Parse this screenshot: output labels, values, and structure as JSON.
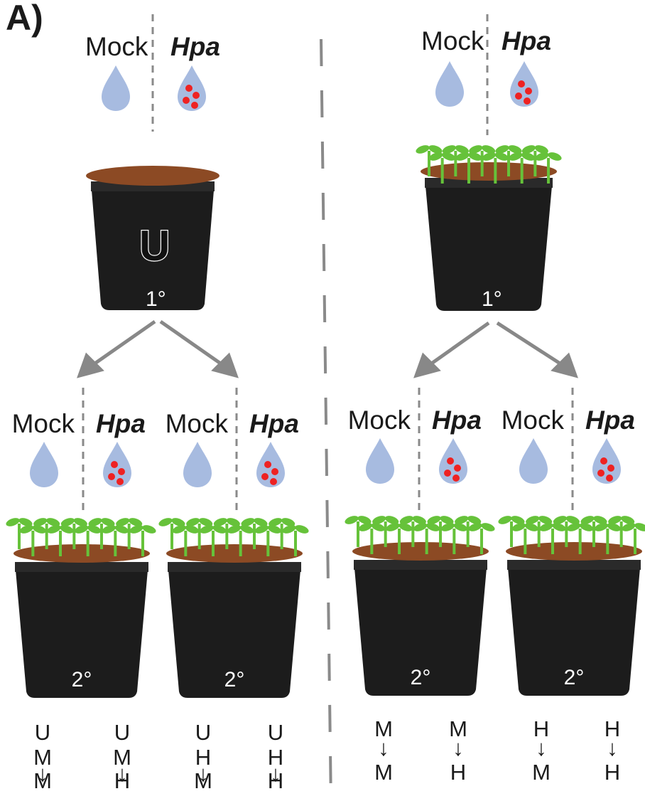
{
  "panel_label": "A)",
  "treatments": {
    "mock": "Mock",
    "hpa": "Hpa"
  },
  "pot_labels": {
    "unplanted": "U",
    "primary": "1°",
    "secondary": "2°"
  },
  "colors": {
    "droplet": "#a7bbe0",
    "spore": "#ee2222",
    "soil": "#8c4a24",
    "pot": "#1c1c1c",
    "seedling": "#66c23a",
    "dashed_line": "#8a8a8a",
    "arrow": "#888888"
  },
  "icons": [
    "water-droplet-icon",
    "spore-droplet-icon",
    "plant-pot-icon",
    "seedling-icon",
    "arrow-icon"
  ],
  "left_sequences": [
    [
      "U",
      "M",
      "↓",
      "M"
    ],
    [
      "U",
      "M",
      "↓",
      "H"
    ],
    [
      "U",
      "H",
      "↓",
      "M"
    ],
    [
      "U",
      "H",
      "↓",
      "H"
    ]
  ],
  "right_sequences": [
    [
      "M",
      "↓",
      "M"
    ],
    [
      "M",
      "↓",
      "H"
    ],
    [
      "H",
      "↓",
      "M"
    ],
    [
      "H",
      "↓",
      "H"
    ]
  ]
}
